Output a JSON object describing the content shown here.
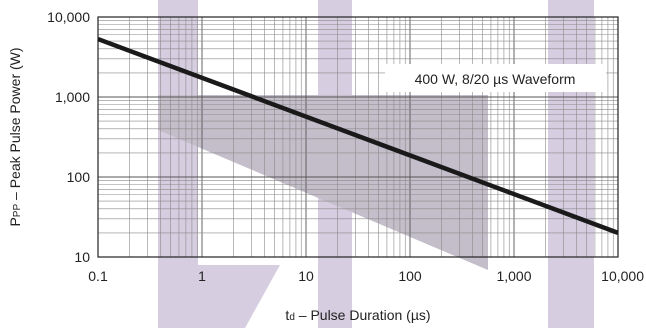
{
  "chart_data": {
    "type": "line",
    "title": "",
    "x_scale": "log",
    "y_scale": "log",
    "xlim": [
      0.1,
      10000
    ],
    "ylim": [
      10,
      10000
    ],
    "grid": true,
    "xlabel": {
      "main": "t",
      "sub": "d",
      "rest": " – Pulse Duration (µs)"
    },
    "ylabel": {
      "main": "P",
      "sub": "PP",
      "rest": " – Peak Pulse Power (W)"
    },
    "x_ticks": [
      {
        "value": 0.1,
        "label": "0.1"
      },
      {
        "value": 1,
        "label": "1"
      },
      {
        "value": 10,
        "label": "10"
      },
      {
        "value": 100,
        "label": "100"
      },
      {
        "value": 1000,
        "label": "1,000"
      },
      {
        "value": 10000,
        "label": "10,000"
      }
    ],
    "y_ticks": [
      {
        "value": 10,
        "label": "10"
      },
      {
        "value": 100,
        "label": "100"
      },
      {
        "value": 1000,
        "label": "1,000"
      },
      {
        "value": 10000,
        "label": "10,000"
      }
    ],
    "series": [
      {
        "color": "#1a1a1a",
        "points": [
          {
            "x": 0.1,
            "y": 5300
          },
          {
            "x": 10000,
            "y": 20
          }
        ]
      }
    ],
    "annotation": "400 W, 8/20 µs Waveform"
  }
}
